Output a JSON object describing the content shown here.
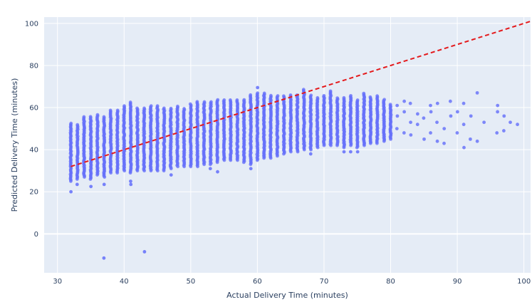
{
  "chart_data": {
    "type": "scatter",
    "title": "",
    "xlabel": "Actual Delivery Time (minutes)",
    "ylabel": "Predicted Delivery Time (minutes)",
    "xlim": [
      28,
      101
    ],
    "ylim": [
      -18.5,
      103
    ],
    "x_ticks": [
      30,
      40,
      50,
      60,
      70,
      80,
      90,
      100
    ],
    "y_ticks": [
      0,
      20,
      40,
      60,
      80,
      100
    ],
    "grid": true,
    "legend": "none",
    "colors": {
      "background": "#e5ecf6",
      "grid": "#ffffff",
      "points": "#636efa",
      "reference_line": "#e41a1c"
    },
    "reference_line": {
      "style": "dashed",
      "points": [
        [
          32,
          32
        ],
        [
          101,
          101
        ]
      ]
    },
    "columns": [
      {
        "x": 32,
        "ymin": 25,
        "ymax": 53,
        "outliers": [
          20
        ]
      },
      {
        "x": 33,
        "ymin": 26,
        "ymax": 52,
        "outliers": [
          23.5
        ]
      },
      {
        "x": 34,
        "ymin": 27,
        "ymax": 56,
        "outliers": []
      },
      {
        "x": 35,
        "ymin": 26,
        "ymax": 56,
        "outliers": [
          22.5
        ]
      },
      {
        "x": 36,
        "ymin": 28,
        "ymax": 57,
        "outliers": []
      },
      {
        "x": 37,
        "ymin": 27,
        "ymax": 56,
        "outliers": [
          -11.5,
          23.5
        ]
      },
      {
        "x": 38,
        "ymin": 29,
        "ymax": 59,
        "outliers": []
      },
      {
        "x": 39,
        "ymin": 29,
        "ymax": 59,
        "outliers": []
      },
      {
        "x": 40,
        "ymin": 30,
        "ymax": 61,
        "outliers": []
      },
      {
        "x": 41,
        "ymin": 29,
        "ymax": 63,
        "outliers": [
          23.5,
          25
        ]
      },
      {
        "x": 42,
        "ymin": 30,
        "ymax": 60,
        "outliers": []
      },
      {
        "x": 43,
        "ymin": 30,
        "ymax": 60,
        "outliers": [
          -8.5
        ]
      },
      {
        "x": 44,
        "ymin": 30,
        "ymax": 61,
        "outliers": []
      },
      {
        "x": 45,
        "ymin": 30,
        "ymax": 61,
        "outliers": []
      },
      {
        "x": 46,
        "ymin": 30,
        "ymax": 60,
        "outliers": []
      },
      {
        "x": 47,
        "ymin": 31,
        "ymax": 60,
        "outliers": [
          28
        ]
      },
      {
        "x": 48,
        "ymin": 32,
        "ymax": 61,
        "outliers": []
      },
      {
        "x": 49,
        "ymin": 32,
        "ymax": 60,
        "outliers": []
      },
      {
        "x": 50,
        "ymin": 32,
        "ymax": 62,
        "outliers": []
      },
      {
        "x": 51,
        "ymin": 32,
        "ymax": 63,
        "outliers": []
      },
      {
        "x": 52,
        "ymin": 33,
        "ymax": 63,
        "outliers": []
      },
      {
        "x": 53,
        "ymin": 33,
        "ymax": 63,
        "outliers": [
          31
        ]
      },
      {
        "x": 54,
        "ymin": 34,
        "ymax": 64,
        "outliers": [
          29.5
        ]
      },
      {
        "x": 55,
        "ymin": 35,
        "ymax": 64,
        "outliers": []
      },
      {
        "x": 56,
        "ymin": 35,
        "ymax": 64,
        "outliers": []
      },
      {
        "x": 57,
        "ymin": 35,
        "ymax": 64,
        "outliers": []
      },
      {
        "x": 58,
        "ymin": 34,
        "ymax": 64,
        "outliers": []
      },
      {
        "x": 59,
        "ymin": 33,
        "ymax": 66,
        "outliers": [
          31
        ]
      },
      {
        "x": 60,
        "ymin": 35,
        "ymax": 67,
        "outliers": [
          69.5
        ]
      },
      {
        "x": 61,
        "ymin": 36,
        "ymax": 67,
        "outliers": []
      },
      {
        "x": 62,
        "ymin": 36,
        "ymax": 66,
        "outliers": []
      },
      {
        "x": 63,
        "ymin": 37,
        "ymax": 66,
        "outliers": []
      },
      {
        "x": 64,
        "ymin": 38,
        "ymax": 66,
        "outliers": []
      },
      {
        "x": 65,
        "ymin": 39,
        "ymax": 66,
        "outliers": []
      },
      {
        "x": 66,
        "ymin": 39,
        "ymax": 66,
        "outliers": []
      },
      {
        "x": 67,
        "ymin": 40,
        "ymax": 69,
        "outliers": []
      },
      {
        "x": 68,
        "ymin": 40,
        "ymax": 66,
        "outliers": [
          38
        ]
      },
      {
        "x": 69,
        "ymin": 41,
        "ymax": 65,
        "outliers": []
      },
      {
        "x": 70,
        "ymin": 42,
        "ymax": 66,
        "outliers": []
      },
      {
        "x": 71,
        "ymin": 42,
        "ymax": 68,
        "outliers": []
      },
      {
        "x": 72,
        "ymin": 42,
        "ymax": 65,
        "outliers": []
      },
      {
        "x": 73,
        "ymin": 41,
        "ymax": 65,
        "outliers": [
          39
        ]
      },
      {
        "x": 74,
        "ymin": 42,
        "ymax": 66,
        "outliers": [
          39
        ]
      },
      {
        "x": 75,
        "ymin": 41,
        "ymax": 64,
        "outliers": [
          39
        ]
      },
      {
        "x": 76,
        "ymin": 42,
        "ymax": 67,
        "outliers": []
      },
      {
        "x": 77,
        "ymin": 43,
        "ymax": 65,
        "outliers": []
      },
      {
        "x": 78,
        "ymin": 43,
        "ymax": 66,
        "outliers": []
      },
      {
        "x": 79,
        "ymin": 44,
        "ymax": 64,
        "outliers": []
      },
      {
        "x": 80,
        "ymin": 45,
        "ymax": 62,
        "outliers": []
      }
    ],
    "sparse_points": [
      [
        81,
        50
      ],
      [
        81,
        56
      ],
      [
        81,
        61
      ],
      [
        82,
        48
      ],
      [
        82,
        58
      ],
      [
        82,
        63
      ],
      [
        83,
        47
      ],
      [
        83,
        53
      ],
      [
        83,
        62
      ],
      [
        84,
        52
      ],
      [
        84,
        57
      ],
      [
        85,
        45
      ],
      [
        85,
        55
      ],
      [
        86,
        48
      ],
      [
        86,
        58
      ],
      [
        86,
        61
      ],
      [
        87,
        44
      ],
      [
        87,
        53
      ],
      [
        87,
        62
      ],
      [
        88,
        43
      ],
      [
        88,
        50
      ],
      [
        89,
        56
      ],
      [
        89,
        63
      ],
      [
        90,
        48
      ],
      [
        90,
        58
      ],
      [
        91,
        41
      ],
      [
        91,
        52
      ],
      [
        91,
        62
      ],
      [
        92,
        45
      ],
      [
        92,
        56
      ],
      [
        93,
        44
      ],
      [
        93,
        67
      ],
      [
        94,
        53
      ],
      [
        96,
        48
      ],
      [
        96,
        58
      ],
      [
        96,
        61
      ],
      [
        97,
        49
      ],
      [
        97,
        56
      ],
      [
        98,
        53
      ],
      [
        99,
        52
      ]
    ]
  }
}
